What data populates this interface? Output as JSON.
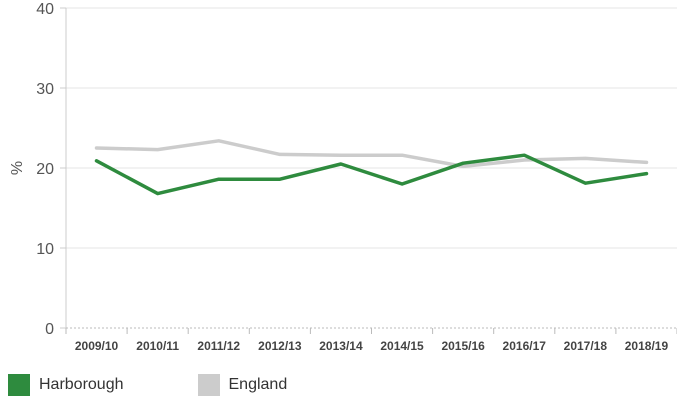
{
  "chart_data": {
    "type": "line",
    "title": "",
    "xlabel": "",
    "ylabel": "%",
    "ylim": [
      0,
      40
    ],
    "yticks": [
      "0",
      "10",
      "20",
      "30",
      "40"
    ],
    "categories": [
      "2009/10",
      "2010/11",
      "2011/12",
      "2012/13",
      "2013/14",
      "2014/15",
      "2015/16",
      "2016/17",
      "2017/18",
      "2018/19"
    ],
    "series": [
      {
        "name": "Harborough",
        "color": "#2e8b3e",
        "values": [
          20.9,
          16.8,
          18.6,
          18.6,
          20.5,
          18.0,
          20.6,
          21.6,
          18.1,
          19.3
        ]
      },
      {
        "name": "England",
        "color": "#cccccc",
        "values": [
          22.5,
          22.3,
          23.4,
          21.7,
          21.6,
          21.6,
          20.2,
          21.0,
          21.2,
          20.7
        ]
      }
    ],
    "grid": "horizontal",
    "legend_position": "bottom-left"
  }
}
